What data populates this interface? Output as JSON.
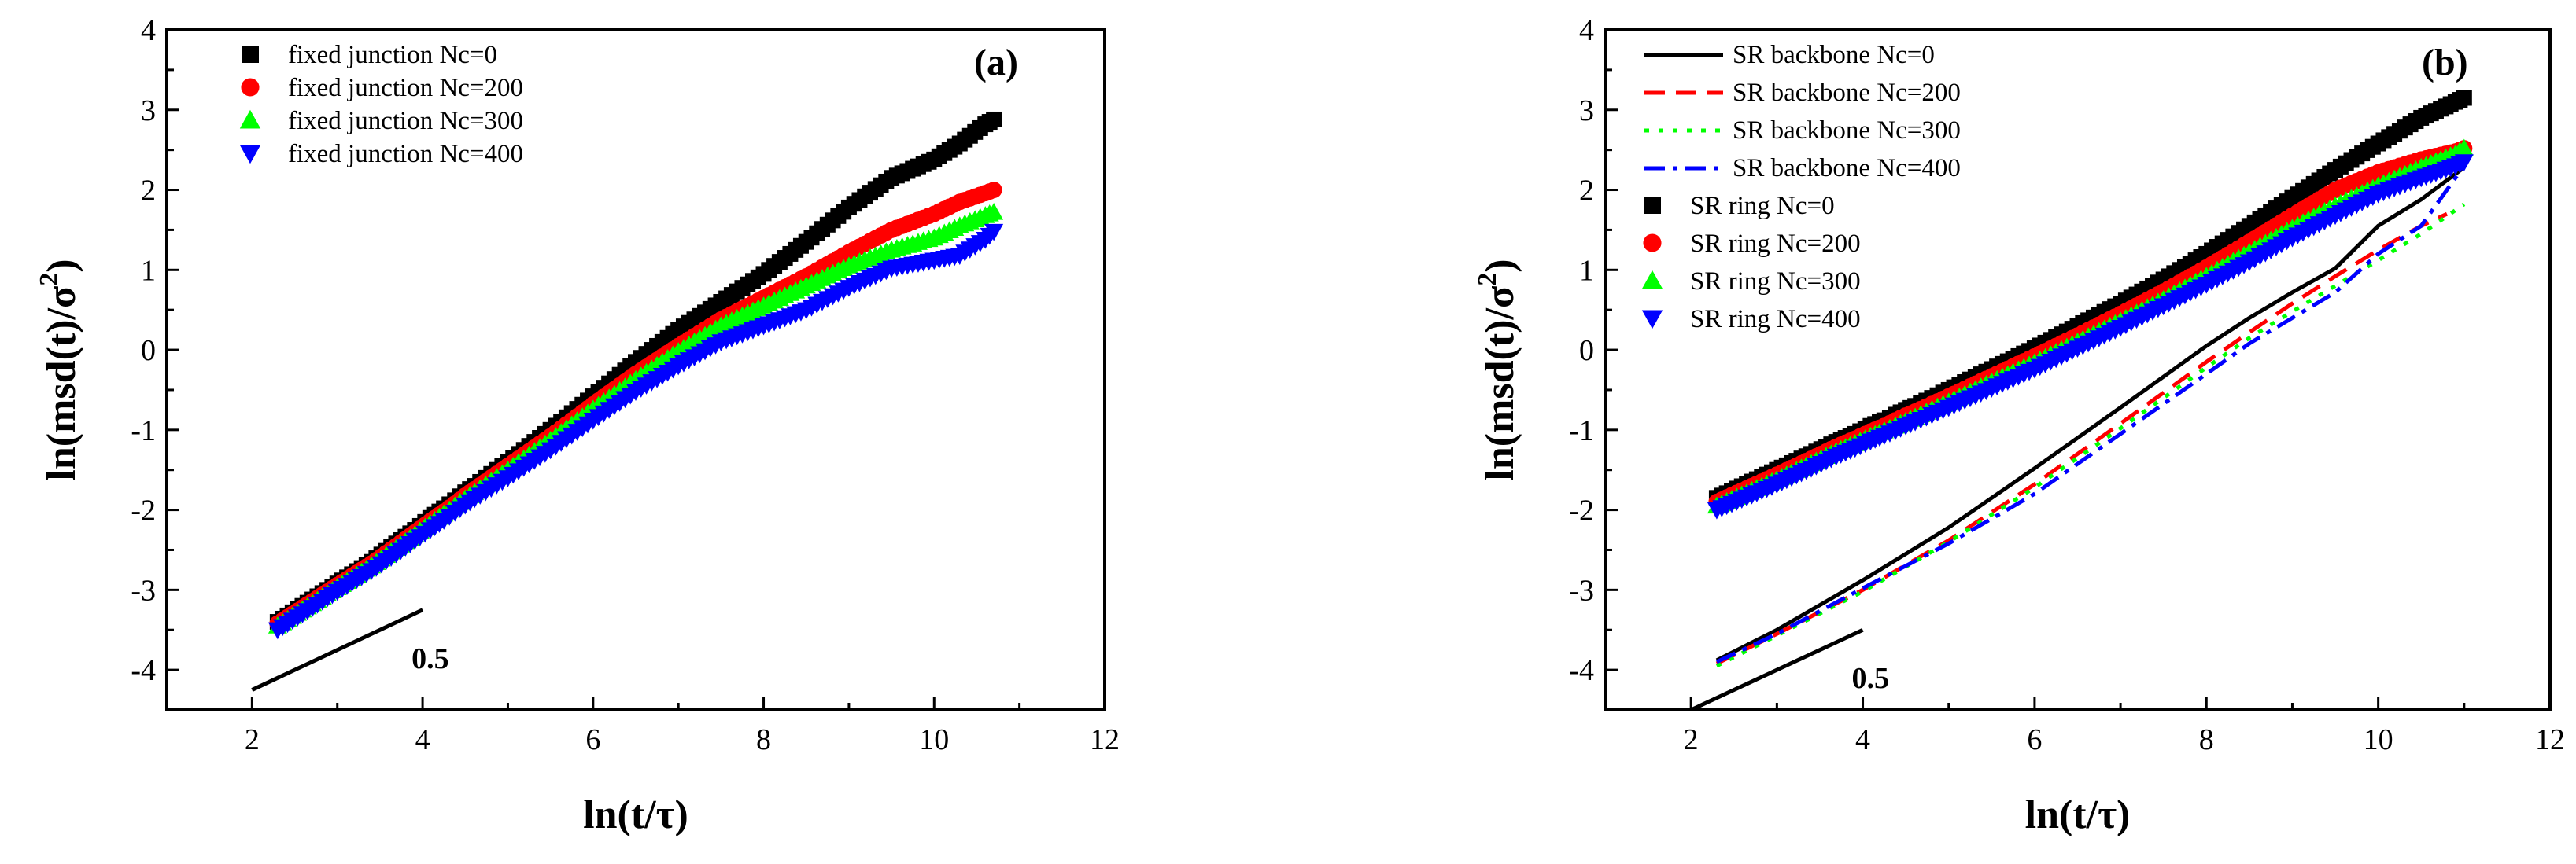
{
  "chart_data": [
    {
      "panel": "(a)",
      "type": "scatter",
      "xlabel": "ln(t/τ)",
      "ylabel": "ln(msd(t)/σ²)",
      "xlim": [
        1,
        12
      ],
      "ylim": [
        -4.5,
        4
      ],
      "xticks": [
        2,
        4,
        6,
        8,
        10,
        12
      ],
      "yticks": [
        -4,
        -3,
        -2,
        -1,
        0,
        1,
        2,
        3,
        4
      ],
      "legend_position": "top-left",
      "reference_line": {
        "x": [
          2.0,
          4.0
        ],
        "y": [
          -4.25,
          -3.25
        ],
        "label": "0.5"
      },
      "series": [
        {
          "name": "fixed junction Nc=0",
          "marker": "square",
          "color": "#000000",
          "x": [
            2.3,
            3.0,
            3.4,
            3.69,
            3.91,
            4.09,
            4.25,
            4.38,
            4.5,
            4.61,
            5.0,
            5.5,
            6.0,
            6.5,
            7.0,
            7.5,
            8.0,
            8.5,
            9.0,
            9.5,
            10.0,
            10.3,
            10.6,
            10.7
          ],
          "y": [
            -3.4,
            -2.92,
            -2.65,
            -2.42,
            -2.25,
            -2.1,
            -1.98,
            -1.88,
            -1.78,
            -1.7,
            -1.4,
            -1.0,
            -0.58,
            -0.15,
            0.25,
            0.6,
            0.95,
            1.35,
            1.78,
            2.15,
            2.38,
            2.58,
            2.82,
            2.88
          ]
        },
        {
          "name": "fixed junction Nc=200",
          "marker": "circle",
          "color": "#ff0000",
          "x": [
            2.3,
            3.0,
            3.4,
            3.69,
            3.91,
            4.09,
            4.25,
            4.38,
            4.5,
            4.61,
            5.0,
            5.5,
            6.0,
            6.5,
            7.0,
            7.5,
            8.0,
            8.5,
            9.0,
            9.5,
            10.0,
            10.3,
            10.6,
            10.7
          ],
          "y": [
            -3.42,
            -2.94,
            -2.67,
            -2.45,
            -2.28,
            -2.14,
            -2.02,
            -1.92,
            -1.82,
            -1.74,
            -1.45,
            -1.08,
            -0.68,
            -0.3,
            0.05,
            0.38,
            0.65,
            0.92,
            1.22,
            1.5,
            1.7,
            1.85,
            1.96,
            2.0
          ]
        },
        {
          "name": "fixed junction Nc=300",
          "marker": "triangle-up",
          "color": "#00ff00",
          "x": [
            2.3,
            3.0,
            3.4,
            3.69,
            3.91,
            4.09,
            4.25,
            4.38,
            4.5,
            4.61,
            5.0,
            5.5,
            6.0,
            6.5,
            7.0,
            7.5,
            8.0,
            8.5,
            9.0,
            9.5,
            10.0,
            10.3,
            10.6,
            10.7
          ],
          "y": [
            -3.45,
            -2.97,
            -2.7,
            -2.48,
            -2.31,
            -2.17,
            -2.05,
            -1.95,
            -1.86,
            -1.78,
            -1.5,
            -1.13,
            -0.74,
            -0.37,
            -0.02,
            0.3,
            0.55,
            0.8,
            1.05,
            1.25,
            1.4,
            1.55,
            1.68,
            1.72
          ]
        },
        {
          "name": "fixed junction Nc=400",
          "marker": "triangle-down",
          "color": "#0000ff",
          "x": [
            2.3,
            3.0,
            3.4,
            3.69,
            3.91,
            4.09,
            4.25,
            4.38,
            4.5,
            4.61,
            5.0,
            5.5,
            6.0,
            6.5,
            7.0,
            7.5,
            8.0,
            8.5,
            9.0,
            9.5,
            10.0,
            10.3,
            10.6,
            10.7
          ],
          "y": [
            -3.5,
            -3.02,
            -2.76,
            -2.55,
            -2.38,
            -2.25,
            -2.13,
            -2.03,
            -1.94,
            -1.86,
            -1.6,
            -1.25,
            -0.88,
            -0.52,
            -0.2,
            0.1,
            0.3,
            0.5,
            0.78,
            1.02,
            1.12,
            1.18,
            1.38,
            1.48
          ]
        }
      ]
    },
    {
      "panel": "(b)",
      "type": "scatter",
      "xlabel": "ln(t/τ)",
      "ylabel": "ln(msd(t)/σ²)",
      "xlim": [
        1,
        12
      ],
      "ylim": [
        -4.5,
        4
      ],
      "xticks": [
        2,
        4,
        6,
        8,
        10,
        12
      ],
      "yticks": [
        -4,
        -3,
        -2,
        -1,
        0,
        1,
        2,
        3,
        4
      ],
      "legend_position": "top-left",
      "reference_line": {
        "x": [
          2.0,
          4.0
        ],
        "y": [
          -4.5,
          -3.5
        ],
        "label": "0.5"
      },
      "series": [
        {
          "name": "SR backbone Nc=0",
          "kind": "line",
          "dash": "solid",
          "color": "#000000",
          "x": [
            2.3,
            3.0,
            4.0,
            5.0,
            6.0,
            7.0,
            8.0,
            8.5,
            9.0,
            9.5,
            10.0,
            10.5,
            11.0
          ],
          "y": [
            -3.88,
            -3.5,
            -2.88,
            -2.22,
            -1.48,
            -0.72,
            0.05,
            0.4,
            0.72,
            1.02,
            1.55,
            1.88,
            2.28
          ]
        },
        {
          "name": "SR backbone Nc=200",
          "kind": "line",
          "dash": "dash",
          "color": "#ff0000",
          "x": [
            2.3,
            3.0,
            4.0,
            5.0,
            6.0,
            7.0,
            8.0,
            8.5,
            9.0,
            9.5,
            10.0,
            10.5,
            10.8
          ],
          "y": [
            -3.92,
            -3.55,
            -3.0,
            -2.38,
            -1.68,
            -0.92,
            -0.15,
            0.22,
            0.58,
            0.92,
            1.25,
            1.55,
            1.7
          ]
        },
        {
          "name": "SR backbone Nc=300",
          "kind": "line",
          "dash": "dot",
          "color": "#00ff00",
          "x": [
            2.3,
            3.0,
            4.0,
            5.0,
            6.0,
            7.0,
            8.0,
            8.5,
            9.0,
            9.5,
            10.0,
            10.5,
            11.0
          ],
          "y": [
            -3.95,
            -3.57,
            -3.02,
            -2.4,
            -1.72,
            -0.98,
            -0.22,
            0.15,
            0.48,
            0.8,
            1.12,
            1.45,
            1.82
          ]
        },
        {
          "name": "SR backbone Nc=400",
          "kind": "line",
          "dash": "dashdot",
          "color": "#0000ff",
          "x": [
            2.3,
            3.0,
            4.0,
            5.0,
            6.0,
            7.0,
            8.0,
            8.5,
            9.0,
            9.5,
            10.0,
            10.5,
            11.0
          ],
          "y": [
            -3.9,
            -3.55,
            -2.98,
            -2.42,
            -1.8,
            -1.05,
            -0.3,
            0.08,
            0.4,
            0.72,
            1.2,
            1.55,
            2.3
          ]
        },
        {
          "name": "SR ring Nc=0",
          "kind": "marker",
          "marker": "square",
          "color": "#000000",
          "x": [
            2.3,
            3.0,
            3.4,
            3.69,
            3.91,
            4.09,
            4.25,
            4.38,
            4.5,
            4.61,
            5.0,
            5.5,
            6.0,
            6.5,
            7.0,
            7.5,
            8.0,
            8.5,
            9.0,
            9.5,
            10.0,
            10.5,
            10.9,
            11.0
          ],
          "y": [
            -1.85,
            -1.5,
            -1.3,
            -1.15,
            -1.05,
            -0.95,
            -0.88,
            -0.81,
            -0.75,
            -0.7,
            -0.5,
            -0.24,
            0.02,
            0.3,
            0.58,
            0.88,
            1.2,
            1.55,
            1.9,
            2.25,
            2.58,
            2.9,
            3.1,
            3.15
          ]
        },
        {
          "name": "SR ring Nc=200",
          "kind": "marker",
          "marker": "circle",
          "color": "#ff0000",
          "x": [
            2.3,
            3.0,
            3.4,
            3.69,
            3.91,
            4.09,
            4.25,
            4.38,
            4.5,
            4.61,
            5.0,
            5.5,
            6.0,
            6.5,
            7.0,
            7.5,
            8.0,
            8.5,
            9.0,
            9.5,
            10.0,
            10.5,
            10.9,
            11.0
          ],
          "y": [
            -1.9,
            -1.56,
            -1.36,
            -1.21,
            -1.11,
            -1.02,
            -0.95,
            -0.88,
            -0.82,
            -0.77,
            -0.58,
            -0.33,
            -0.08,
            0.18,
            0.45,
            0.73,
            1.03,
            1.35,
            1.68,
            2.0,
            2.22,
            2.38,
            2.48,
            2.52
          ]
        },
        {
          "name": "SR ring Nc=300",
          "kind": "marker",
          "marker": "triangle-up",
          "color": "#00ff00",
          "x": [
            2.3,
            3.0,
            3.4,
            3.69,
            3.91,
            4.09,
            4.25,
            4.38,
            4.5,
            4.61,
            5.0,
            5.5,
            6.0,
            6.5,
            7.0,
            7.5,
            8.0,
            8.5,
            9.0,
            9.5,
            10.0,
            10.5,
            10.9,
            11.0
          ],
          "y": [
            -1.95,
            -1.62,
            -1.42,
            -1.27,
            -1.17,
            -1.08,
            -1.01,
            -0.95,
            -0.89,
            -0.84,
            -0.65,
            -0.4,
            -0.16,
            0.1,
            0.36,
            0.63,
            0.92,
            1.22,
            1.52,
            1.8,
            2.05,
            2.28,
            2.45,
            2.52
          ]
        },
        {
          "name": "SR ring Nc=400",
          "kind": "marker",
          "marker": "triangle-down",
          "color": "#0000ff",
          "x": [
            2.3,
            3.0,
            3.4,
            3.69,
            3.91,
            4.09,
            4.25,
            4.38,
            4.5,
            4.61,
            5.0,
            5.5,
            6.0,
            6.5,
            7.0,
            7.5,
            8.0,
            8.5,
            9.0,
            9.5,
            10.0,
            10.5,
            10.9,
            11.0
          ],
          "y": [
            -2.0,
            -1.68,
            -1.48,
            -1.33,
            -1.23,
            -1.14,
            -1.07,
            -1.01,
            -0.95,
            -0.9,
            -0.72,
            -0.48,
            -0.24,
            0.02,
            0.28,
            0.55,
            0.82,
            1.1,
            1.4,
            1.68,
            1.95,
            2.15,
            2.3,
            2.35
          ]
        }
      ]
    }
  ]
}
